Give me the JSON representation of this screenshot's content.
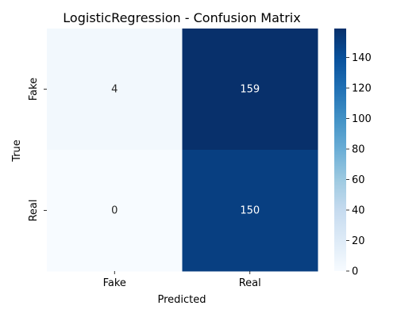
{
  "chart_data": {
    "type": "heatmap",
    "title": "LogisticRegression - Confusion Matrix",
    "xlabel": "Predicted",
    "ylabel": "True",
    "x_categories": [
      "Fake",
      "Real"
    ],
    "y_categories": [
      "Fake",
      "Real"
    ],
    "values": [
      [
        4,
        159
      ],
      [
        0,
        150
      ]
    ],
    "colorbar": {
      "min": 0,
      "max": 159,
      "ticks": [
        0,
        20,
        40,
        60,
        80,
        100,
        120,
        140
      ]
    },
    "colormap": "Blues",
    "colors": {
      "low": "#f7fbff",
      "high": "#08306b"
    }
  }
}
